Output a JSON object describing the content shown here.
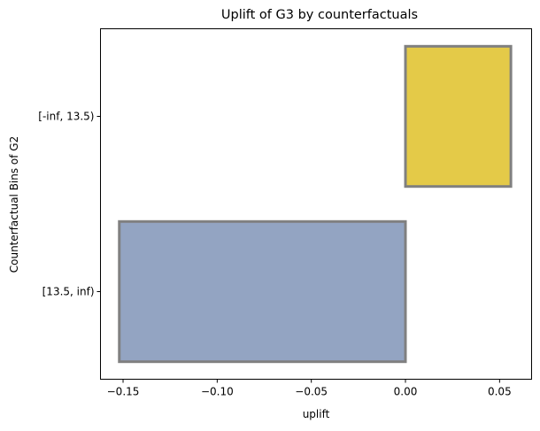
{
  "chart_data": {
    "type": "bar",
    "orientation": "horizontal",
    "title": "Uplift  of G3 by counterfactuals",
    "xlabel": "uplift",
    "ylabel": "Counterfactual Bins of G2",
    "categories": [
      "[-inf, 13.5)",
      "[13.5, inf)"
    ],
    "values": [
      0.056,
      -0.152
    ],
    "bar_colors": [
      "#e4ca48",
      "#93a4c2"
    ],
    "edge_color": "#808080",
    "xlim": [
      -0.162,
      0.067
    ],
    "xticks": [
      -0.15,
      -0.1,
      -0.05,
      0.0,
      0.05
    ],
    "xtick_labels": [
      "−0.15",
      "−0.10",
      "−0.05",
      "0.00",
      "0.05"
    ],
    "grid": false,
    "legend": "none"
  }
}
